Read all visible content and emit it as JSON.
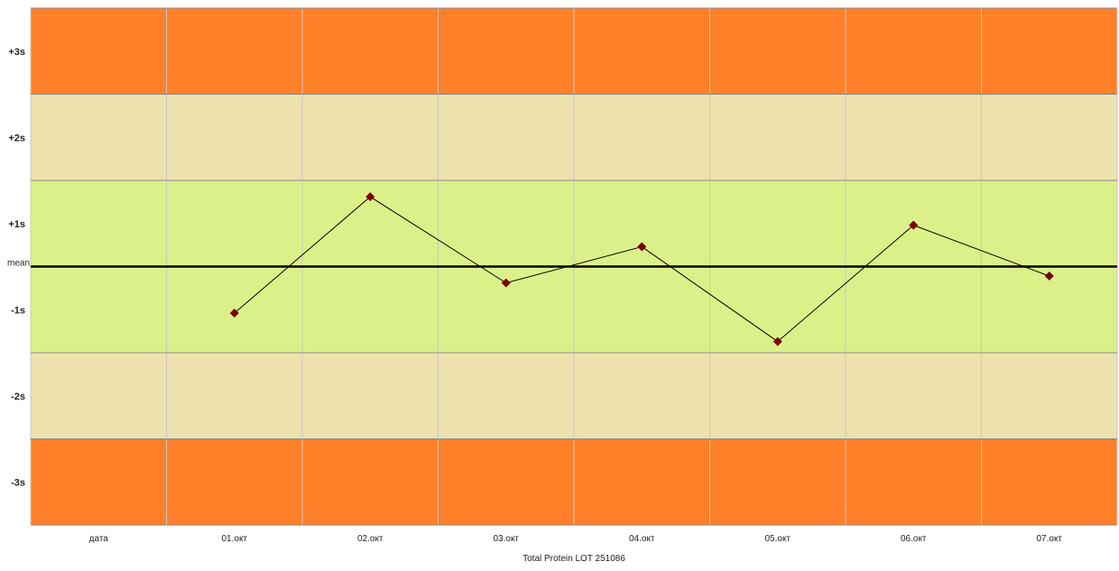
{
  "chart_data": {
    "type": "line",
    "xlabel": "Total Protein LOT 251086",
    "categories": [
      "дата",
      "01.окт",
      "02.окт",
      "03.окт",
      "04.окт",
      "05.окт",
      "06.окт",
      "07.окт"
    ],
    "y_band_labels": [
      "+3s",
      "+2s",
      "+1s",
      "mean",
      "-1s",
      "-2s",
      "-3s"
    ],
    "ylim": [
      -3,
      3
    ],
    "mean_line": 0,
    "bands": [
      {
        "from": 2,
        "to": 3,
        "color": "#FF8028"
      },
      {
        "from": 1,
        "to": 2,
        "color": "#EEE2AE"
      },
      {
        "from": -1,
        "to": 1,
        "color": "#DCF08A"
      },
      {
        "from": -2,
        "to": -1,
        "color": "#EEE2AE"
      },
      {
        "from": -3,
        "to": -2,
        "color": "#FF8028"
      }
    ],
    "series": [
      {
        "x": [
          "01.окт",
          "02.окт",
          "03.окт",
          "04.окт",
          "05.окт",
          "06.окт",
          "07.окт"
        ],
        "values": [
          -0.54,
          0.81,
          -0.19,
          0.23,
          -0.87,
          0.48,
          -0.11
        ],
        "marker": "diamond",
        "marker_color": "#7A0000",
        "line_color": "#000000"
      }
    ],
    "grid": true
  }
}
